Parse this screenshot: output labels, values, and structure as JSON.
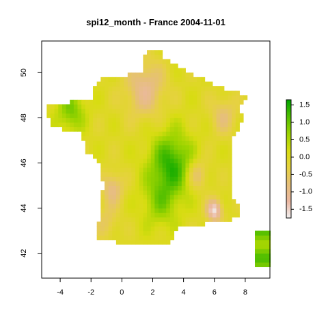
{
  "chart_data": {
    "type": "heatmap",
    "title": "spi12_month - France 2004-11-01",
    "xlabel": "",
    "ylabel": "",
    "xlim": [
      -5.2,
      9.6
    ],
    "ylim": [
      40.9,
      51.4
    ],
    "x_ticks": [
      -4,
      -2,
      0,
      2,
      4,
      6,
      8
    ],
    "y_ticks": [
      42,
      44,
      46,
      48,
      50
    ],
    "x_tick_labels": [
      "-4",
      "-2",
      "0",
      "2",
      "4",
      "6",
      "8"
    ],
    "y_tick_labels": [
      "42",
      "44",
      "46",
      "48",
      "50"
    ],
    "colorbar": {
      "range": [
        -1.75,
        1.65
      ],
      "ticks": [
        1.5,
        1.0,
        0.5,
        0.0,
        -0.5,
        -1.0,
        -1.5
      ],
      "tick_labels": [
        "1.5",
        "1.0",
        "0.5",
        "0.0",
        "-0.5",
        "-1.0",
        "-1.5"
      ],
      "colors": [
        "#f2f2f2",
        "#ebb8a2",
        "#e6bf7a",
        "#e6d240",
        "#d8dc12",
        "#9dd400",
        "#53bf00",
        "#00a600"
      ]
    },
    "grid": false,
    "legend": "right"
  }
}
